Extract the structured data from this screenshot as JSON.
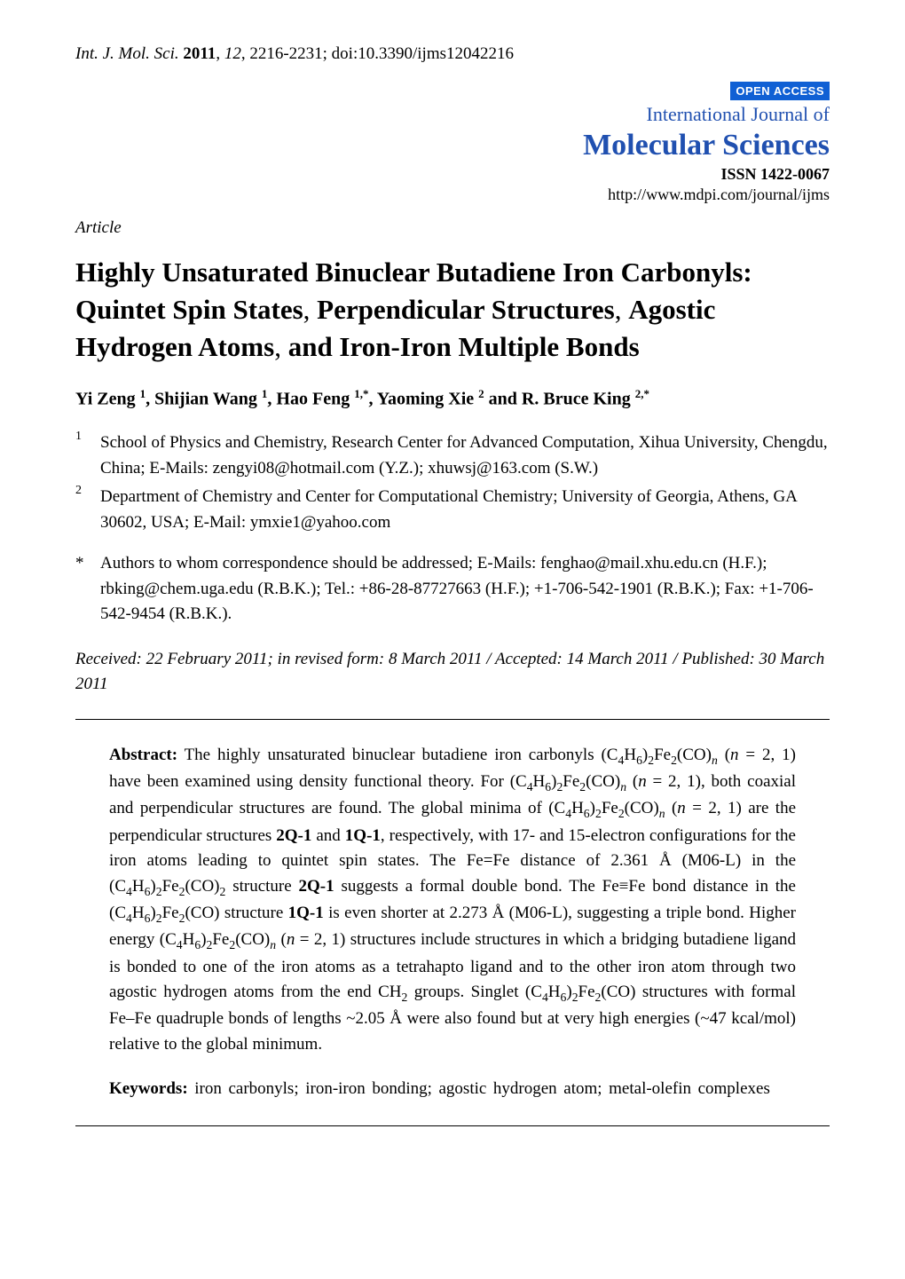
{
  "header": {
    "journal_abbr": "Int. J. Mol. Sci.",
    "year": "2011",
    "volume": "12",
    "pages": "2216-2231",
    "doi": "doi:10.3390/ijms12042216"
  },
  "open_access": "OPEN ACCESS",
  "journal": {
    "line1": "International Journal of",
    "line2": "Molecular Sciences",
    "issn": "ISSN 1422-0067",
    "url": "http://www.mdpi.com/journal/ijms"
  },
  "article_type": "Article",
  "title_parts": {
    "p1": "Highly Unsaturated Binuclear Butadiene Iron Carbonyls: Quintet Spin States",
    "p2": "Perpendicular Structures",
    "p3": "Agostic Hydrogen Atoms",
    "p4": "and Iron-Iron Multiple Bonds"
  },
  "authors": {
    "a1": {
      "name": "Yi Zeng",
      "sup": "1"
    },
    "a2": {
      "name": "Shijian Wang",
      "sup": "1"
    },
    "a3": {
      "name": "Hao Feng",
      "sup": "1,*"
    },
    "a4": {
      "name": "Yaoming Xie",
      "sup": "2"
    },
    "a5": {
      "name": "R. Bruce King",
      "sup": "2,*"
    }
  },
  "affiliations": {
    "a1": {
      "num": "1",
      "text": "School of Physics and Chemistry, Research Center for Advanced Computation, Xihua University, Chengdu, China; E-Mails: zengyi08@hotmail.com (Y.Z.); xhuwsj@163.com (S.W.)"
    },
    "a2": {
      "num": "2",
      "text": "Department of Chemistry and Center for Computational Chemistry; University of Georgia, Athens, GA 30602, USA; E-Mail: ymxie1@yahoo.com"
    }
  },
  "correspondence": {
    "star": "*",
    "text": "Authors to whom correspondence should be addressed; E-Mails: fenghao@mail.xhu.edu.cn (H.F.); rbking@chem.uga.edu (R.B.K.); Tel.: +86-28-87727663 (H.F.); +1-706-542-1901 (R.B.K.); Fax: +1-706-542-9454 (R.B.K.)."
  },
  "dates": "Received: 22 February 2011; in revised form: 8 March 2011 / Accepted: 14 March 2011 / Published: 30 March 2011",
  "abstract": {
    "label": "Abstract:",
    "t1": " The highly unsaturated binuclear butadiene iron carbonyls (C",
    "t2": "H",
    "t3": ")",
    "t4": "Fe",
    "t5": "(CO)",
    "t6": " (",
    "n_it": "n",
    "t7": " = 2, 1) have been examined using density functional theory. For (C",
    "t8": " = 2, 1), both coaxial and perpendicular structures are found. The global minima of (C",
    "t9": " = 2, 1) are the perpendicular structures ",
    "b_2q1": "2Q-1",
    "and": " and ",
    "b_1q1": "1Q-1",
    "t10": ", respectively, with 17- and 15-electron configurations for the iron atoms leading to quintet spin states. The Fe=Fe distance of 2.361 Å (M06-L) in the (C",
    "t11": " structure ",
    "t12": " suggests a formal double bond. The Fe≡Fe bond distance in the (C",
    "t13": "(CO) structure ",
    "t14": " is even shorter at 2.273 Å (M06-L), suggesting a triple bond. Higher energy (C",
    "t15": " = 2, 1) structures include structures in which a bridging butadiene ligand is bonded to one of the iron atoms as a tetrahapto ligand and to the other iron atom through two agostic hydrogen atoms from the end CH",
    "t16": " groups. Singlet (C",
    "t17": "(CO) structures with formal Fe–Fe quadruple bonds of lengths ~2.05 Å were also found but at very high energies (~47 kcal/mol) relative to the global minimum.",
    "sub4": "4",
    "sub6": "6",
    "sub2": "2",
    "sub_n": "n"
  },
  "keywords": {
    "label": "Keywords:",
    "text": " iron carbonyls; iron-iron bonding; agostic hydrogen atom; metal-olefin complexes"
  },
  "colors": {
    "badge_bg": "#1060d4",
    "journal_color": "#2050b0",
    "text": "#000000",
    "background": "#ffffff"
  },
  "typography": {
    "body_fontsize_pt": 12,
    "title_fontsize_pt": 18,
    "family": "Times New Roman"
  }
}
